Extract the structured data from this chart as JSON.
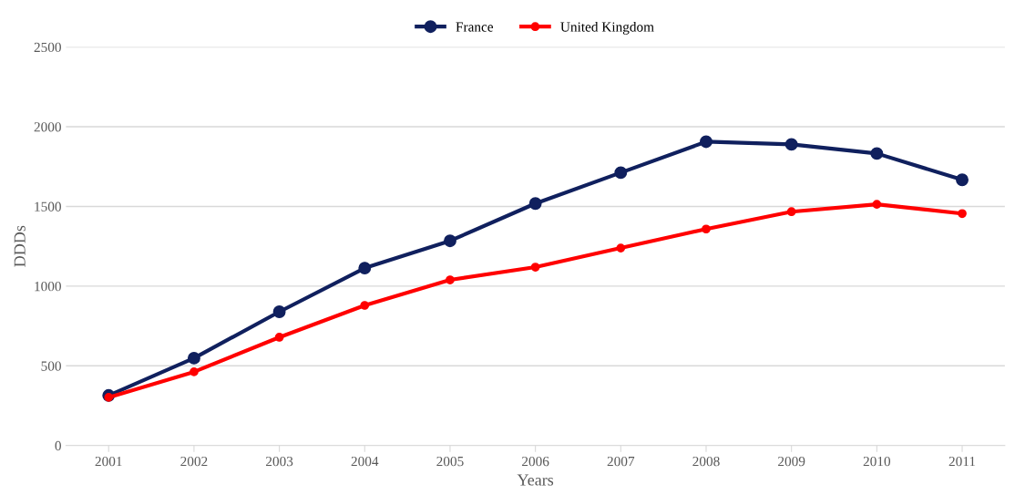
{
  "chart_data": {
    "type": "line",
    "xlabel": "Years",
    "ylabel": "DDDs",
    "categories": [
      "2001",
      "2002",
      "2003",
      "2004",
      "2005",
      "2006",
      "2007",
      "2008",
      "2009",
      "2010",
      "2011"
    ],
    "series": [
      {
        "name": "France",
        "color": "#10205e",
        "values": [
          314,
          548,
          839,
          1113,
          1284,
          1518,
          1712,
          1906,
          1889,
          1832,
          1667
        ]
      },
      {
        "name": "United Kingdom",
        "color": "#ff0000",
        "values": [
          302,
          462,
          679,
          879,
          1039,
          1119,
          1239,
          1358,
          1467,
          1513,
          1455
        ]
      }
    ],
    "ylim": [
      0,
      2500
    ],
    "yticks": [
      0,
      500,
      1000,
      1500,
      2000,
      2500
    ],
    "grid": "y",
    "legend": "top",
    "marker": "circle",
    "line_style": "solid"
  }
}
